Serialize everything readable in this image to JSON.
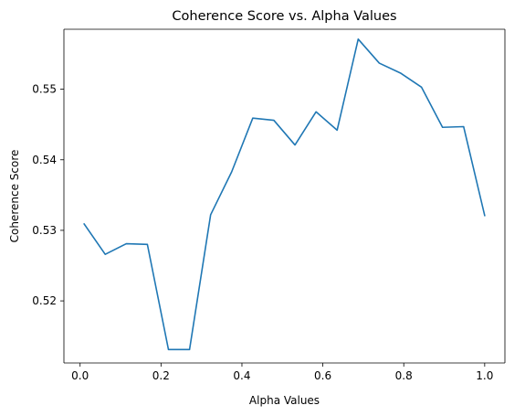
{
  "chart_data": {
    "type": "line",
    "title": "Coherence Score vs. Alpha Values",
    "xlabel": "Alpha Values",
    "ylabel": "Coherence Score",
    "xlim": [
      -0.04,
      1.05
    ],
    "ylim": [
      0.5112,
      0.5585
    ],
    "xticks": [
      0.0,
      0.2,
      0.4,
      0.6,
      0.8,
      1.0
    ],
    "xtick_labels": [
      "0.0",
      "0.2",
      "0.4",
      "0.6",
      "0.8",
      "1.0"
    ],
    "yticks": [
      0.52,
      0.53,
      0.54,
      0.55
    ],
    "ytick_labels": [
      "0.52",
      "0.53",
      "0.54",
      "0.55"
    ],
    "grid": false,
    "series": [
      {
        "color": "#1f77b4",
        "x": [
          0.01,
          0.0621,
          0.1142,
          0.1663,
          0.2184,
          0.2705,
          0.3226,
          0.3747,
          0.4268,
          0.4789,
          0.5311,
          0.5832,
          0.6353,
          0.6874,
          0.7395,
          0.7916,
          0.8437,
          0.8958,
          0.9479,
          1.0
        ],
        "y": [
          0.5309,
          0.5266,
          0.5281,
          0.528,
          0.5131,
          0.5131,
          0.5322,
          0.5383,
          0.5459,
          0.5456,
          0.5421,
          0.5468,
          0.5442,
          0.5571,
          0.5537,
          0.5523,
          0.5503,
          0.5446,
          0.5447,
          0.5321
        ]
      }
    ]
  }
}
